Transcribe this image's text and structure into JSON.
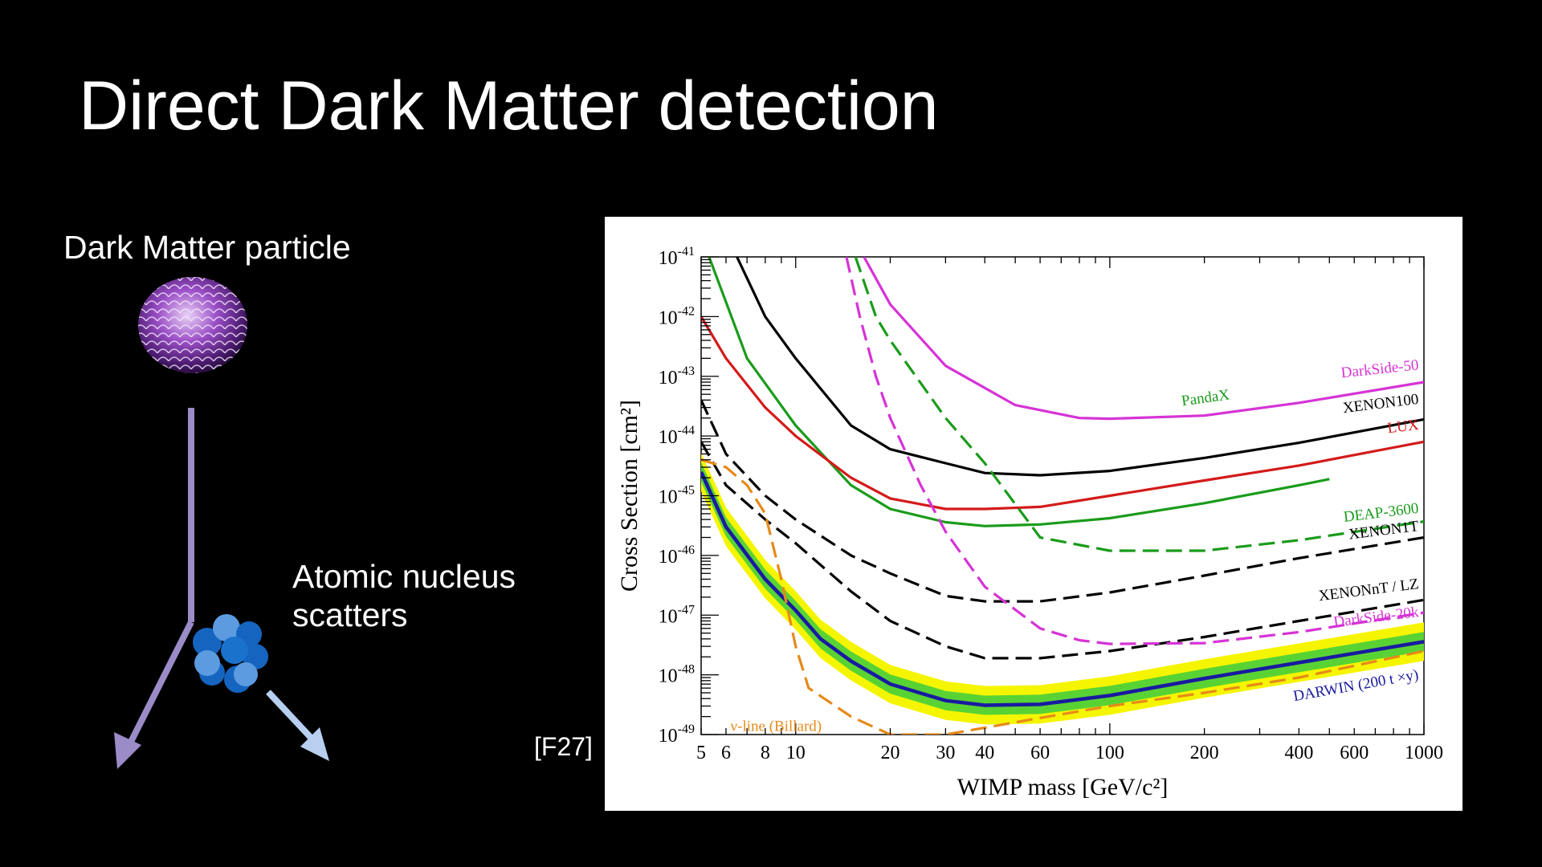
{
  "slide": {
    "title": "Direct Dark Matter detection",
    "dm_label": "Dark Matter particle",
    "nucleus_label_line1": "Atomic nucleus",
    "nucleus_label_line2": "scatters",
    "reference": "[F27]"
  },
  "colors": {
    "background": "#000000",
    "arrow_incoming": "#9b8cc8",
    "arrow_nucleus": "#b8cff0",
    "nucleon_dark": "#1565c0",
    "nucleon_light": "#5c9be0"
  },
  "chart_data": {
    "type": "line",
    "xlabel": "WIMP mass [GeV/c²]",
    "ylabel": "Cross Section [cm²]",
    "x_scale": "log",
    "y_scale": "log",
    "xlim": [
      5,
      1000
    ],
    "ylim": [
      1e-49,
      1e-41
    ],
    "x_ticks": [
      "5",
      "6",
      "8",
      "10",
      "20",
      "30",
      "40",
      "60",
      "100",
      "200",
      "400",
      "600",
      "1000"
    ],
    "y_ticks": [
      "10-49",
      "10-48",
      "10-47",
      "10-46",
      "10-45",
      "10-44",
      "10-43",
      "10-42",
      "10-41"
    ],
    "series": [
      {
        "name": "DarkSide-50",
        "color": "#d633d6",
        "dash": "solid",
        "points": [
          [
            16.5,
            1e-41
          ],
          [
            20,
            1.6e-42
          ],
          [
            30,
            1.5e-43
          ],
          [
            50,
            3.3e-44
          ],
          [
            80,
            2e-44
          ],
          [
            100,
            1.95e-44
          ],
          [
            200,
            2.2e-44
          ],
          [
            400,
            3.6e-44
          ],
          [
            1000,
            8e-44
          ]
        ]
      },
      {
        "name": "PandaX",
        "color": "#1a9b1a",
        "dash": "solid",
        "points": [
          [
            5.3,
            1e-41
          ],
          [
            7,
            2e-43
          ],
          [
            10,
            1.5e-44
          ],
          [
            15,
            1.5e-45
          ],
          [
            20,
            6e-46
          ],
          [
            30,
            3.6e-46
          ],
          [
            40,
            3.1e-46
          ],
          [
            60,
            3.3e-46
          ],
          [
            100,
            4.2e-46
          ],
          [
            200,
            7.5e-46
          ],
          [
            400,
            1.5e-45
          ],
          [
            500,
            1.9e-45
          ]
        ]
      },
      {
        "name": "XENON100",
        "color": "#000000",
        "dash": "solid",
        "points": [
          [
            6.5,
            1e-41
          ],
          [
            8,
            1e-42
          ],
          [
            10,
            2e-43
          ],
          [
            15,
            1.5e-44
          ],
          [
            20,
            6e-45
          ],
          [
            30,
            3.5e-45
          ],
          [
            40,
            2.4e-45
          ],
          [
            60,
            2.2e-45
          ],
          [
            100,
            2.6e-45
          ],
          [
            200,
            4.3e-45
          ],
          [
            400,
            7.7e-45
          ],
          [
            1000,
            1.9e-44
          ]
        ]
      },
      {
        "name": "LUX",
        "color": "#d41a1a",
        "dash": "solid",
        "points": [
          [
            5,
            1e-42
          ],
          [
            6,
            2e-43
          ],
          [
            8,
            3e-44
          ],
          [
            10,
            1e-44
          ],
          [
            15,
            2e-45
          ],
          [
            20,
            9e-46
          ],
          [
            30,
            6e-46
          ],
          [
            40,
            6e-46
          ],
          [
            60,
            6.5e-46
          ],
          [
            100,
            1e-45
          ],
          [
            200,
            1.8e-45
          ],
          [
            400,
            3.2e-45
          ],
          [
            1000,
            8e-45
          ]
        ]
      },
      {
        "name": "DEAP-3600",
        "color": "#1a9b1a",
        "dash": "dashed",
        "points": [
          [
            15.5,
            1e-41
          ],
          [
            18,
            1e-42
          ],
          [
            20,
            4e-43
          ],
          [
            30,
            2e-44
          ],
          [
            40,
            3.5e-45
          ],
          [
            60,
            2e-46
          ],
          [
            100,
            1.2e-46
          ],
          [
            200,
            1.2e-46
          ],
          [
            400,
            1.8e-46
          ],
          [
            1000,
            3.7e-46
          ]
        ]
      },
      {
        "name": "XENON1T",
        "color": "#000000",
        "dash": "dashed",
        "points": [
          [
            5,
            4e-44
          ],
          [
            6,
            5e-45
          ],
          [
            8,
            1e-45
          ],
          [
            10,
            4e-46
          ],
          [
            15,
            1e-46
          ],
          [
            20,
            5e-47
          ],
          [
            30,
            2.1e-47
          ],
          [
            40,
            1.7e-47
          ],
          [
            60,
            1.7e-47
          ],
          [
            100,
            2.4e-47
          ],
          [
            200,
            4.6e-47
          ],
          [
            400,
            9e-47
          ],
          [
            1000,
            2e-46
          ]
        ]
      },
      {
        "name": "XENONnT / LZ",
        "color": "#000000",
        "dash": "dashed",
        "points": [
          [
            5,
            8e-45
          ],
          [
            6,
            1.5e-45
          ],
          [
            8,
            4e-46
          ],
          [
            10,
            1.6e-46
          ],
          [
            15,
            2.5e-47
          ],
          [
            20,
            8e-48
          ],
          [
            30,
            3e-48
          ],
          [
            40,
            1.9e-48
          ],
          [
            60,
            1.9e-48
          ],
          [
            100,
            2.5e-48
          ],
          [
            200,
            4.3e-48
          ],
          [
            400,
            8e-48
          ],
          [
            1000,
            1.8e-47
          ]
        ]
      },
      {
        "name": "DarkSide-20k",
        "color": "#d633d6",
        "dash": "dashed",
        "points": [
          [
            14.5,
            1e-41
          ],
          [
            16,
            1e-42
          ],
          [
            18,
            1e-43
          ],
          [
            20,
            2e-44
          ],
          [
            25,
            1.5e-45
          ],
          [
            30,
            2.5e-46
          ],
          [
            40,
            3e-47
          ],
          [
            60,
            6e-48
          ],
          [
            80,
            3.8e-48
          ],
          [
            100,
            3.3e-48
          ],
          [
            200,
            3.4e-48
          ],
          [
            400,
            5.2e-48
          ],
          [
            1000,
            1.1e-47
          ]
        ]
      },
      {
        "name": "DARWIN (200 t ×y)",
        "color": "#1a1aa0",
        "dash": "solid",
        "band": [
          "#f5f500",
          "#3dcc3d"
        ],
        "points": [
          [
            5,
            2.5e-45
          ],
          [
            6,
            3e-46
          ],
          [
            8,
            4e-47
          ],
          [
            10,
            1.2e-47
          ],
          [
            12,
            4e-48
          ],
          [
            15,
            1.7e-48
          ],
          [
            20,
            7e-49
          ],
          [
            30,
            3.7e-49
          ],
          [
            40,
            3.1e-49
          ],
          [
            60,
            3.2e-49
          ],
          [
            100,
            4.5e-49
          ],
          [
            200,
            8.7e-49
          ],
          [
            400,
            1.6e-48
          ],
          [
            1000,
            3.6e-48
          ]
        ]
      },
      {
        "name": "ν-line (Billard)",
        "color": "#e68a1a",
        "dash": "dashed",
        "points": [
          [
            5,
            4e-45
          ],
          [
            6,
            3e-45
          ],
          [
            7,
            1.5e-45
          ],
          [
            8,
            5e-46
          ],
          [
            9,
            4e-47
          ],
          [
            10,
            3e-48
          ],
          [
            11,
            6e-49
          ],
          [
            15,
            2e-49
          ],
          [
            20,
            1e-49
          ],
          [
            30,
            1e-49
          ],
          [
            40,
            1.3e-49
          ],
          [
            60,
            1.9e-49
          ],
          [
            100,
            3e-49
          ],
          [
            200,
            5e-49
          ],
          [
            400,
            9e-49
          ],
          [
            1000,
            2.5e-48
          ]
        ]
      }
    ]
  }
}
